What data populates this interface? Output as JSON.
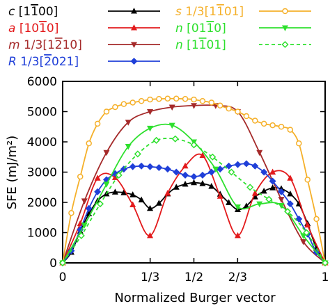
{
  "chart_data": {
    "type": "line",
    "xlabel": "Normalized Burger vector",
    "ylabel": "SFE (mJ/m²)",
    "xlim": [
      0,
      1
    ],
    "ylim": [
      0,
      6000
    ],
    "grid": false,
    "legend_position": "top",
    "x_ticks": [
      {
        "value": 0,
        "label": "0"
      },
      {
        "value": 0.3333,
        "label": "1/3"
      },
      {
        "value": 0.5,
        "label": "1/2"
      },
      {
        "value": 0.6667,
        "label": "2/3"
      },
      {
        "value": 1,
        "label": "1"
      }
    ],
    "y_ticks": [
      {
        "value": 0,
        "label": "0"
      },
      {
        "value": 1000,
        "label": "1000"
      },
      {
        "value": 2000,
        "label": "2000"
      },
      {
        "value": 3000,
        "label": "3000"
      },
      {
        "value": 4000,
        "label": "4000"
      },
      {
        "value": 5000,
        "label": "5000"
      },
      {
        "value": 6000,
        "label": "6000"
      }
    ],
    "series": [
      {
        "name": "c [1̅0]",
        "legend_plain": "c [1100]",
        "legend_prefix": "c",
        "legend_rest": "[1",
        "legend_over": "1",
        "legend_tail": "00]",
        "color": "#000000",
        "marker": "triangle-up",
        "dash": false,
        "x": [
          0,
          0.033,
          0.067,
          0.1,
          0.133,
          0.167,
          0.2,
          0.233,
          0.267,
          0.3,
          0.333,
          0.367,
          0.4,
          0.433,
          0.467,
          0.5,
          0.533,
          0.567,
          0.6,
          0.633,
          0.667,
          0.7,
          0.733,
          0.767,
          0.8,
          0.833,
          0.867,
          0.9,
          0.933,
          0.967,
          1
        ],
        "y": [
          0,
          350,
          1050,
          1620,
          2050,
          2280,
          2340,
          2320,
          2250,
          2080,
          1800,
          1970,
          2280,
          2500,
          2600,
          2650,
          2620,
          2530,
          2270,
          1990,
          1760,
          1880,
          2180,
          2370,
          2480,
          2450,
          2280,
          1950,
          1300,
          480,
          0
        ]
      },
      {
        "name": "a [1010]",
        "legend_plain": "a [1010]",
        "legend_prefix": "a",
        "legend_rest": "[10",
        "legend_over": "1",
        "legend_tail": "0]",
        "color": "#e31a1c",
        "marker": "triangle-up",
        "dash": false,
        "x": [
          0,
          0.067,
          0.133,
          0.2,
          0.267,
          0.333,
          0.4,
          0.467,
          0.533,
          0.6,
          0.667,
          0.733,
          0.8,
          0.867,
          0.933,
          1
        ],
        "y": [
          0,
          1300,
          2800,
          2820,
          1920,
          900,
          2300,
          3200,
          3550,
          2200,
          900,
          2300,
          3000,
          2800,
          1250,
          0
        ]
      },
      {
        "name": "m 1/3[1210]",
        "legend_plain": "m 1/3[1210]",
        "legend_prefix": "m",
        "legend_rest": "1/3[1",
        "legend_over": "2",
        "legend_tail": "10]",
        "color": "#a52a2a",
        "marker": "triangle-down",
        "dash": false,
        "x": [
          0,
          0.083,
          0.167,
          0.25,
          0.333,
          0.417,
          0.5,
          0.583,
          0.667,
          0.75,
          0.833,
          0.917,
          1
        ],
        "y": [
          0,
          2050,
          3650,
          4650,
          5000,
          5150,
          5200,
          5200,
          5000,
          3650,
          2100,
          700,
          0
        ]
      },
      {
        "name": "R 1/3[2021]",
        "legend_plain": "R 1/3[2021]",
        "legend_prefix": "R",
        "legend_rest": "1/3[",
        "legend_over": "2",
        "legend_tail": "021]",
        "color": "#1f3fd8",
        "marker": "diamond",
        "dash": false,
        "x": [
          0,
          0.033,
          0.067,
          0.1,
          0.133,
          0.167,
          0.2,
          0.233,
          0.267,
          0.3,
          0.333,
          0.367,
          0.4,
          0.433,
          0.467,
          0.5,
          0.533,
          0.567,
          0.6,
          0.633,
          0.667,
          0.7,
          0.733,
          0.767,
          0.8,
          0.833,
          0.867,
          0.9,
          0.933,
          0.967,
          1
        ],
        "y": [
          0,
          400,
          1100,
          1800,
          2350,
          2750,
          2950,
          3100,
          3180,
          3200,
          3180,
          3150,
          3100,
          3000,
          2900,
          2850,
          2900,
          3000,
          3100,
          3200,
          3250,
          3280,
          3200,
          3000,
          2700,
          2350,
          1950,
          1450,
          950,
          350,
          0
        ]
      },
      {
        "name": "s 1/3[1101]",
        "legend_plain": "s 1/3[1101]",
        "legend_prefix": "s",
        "legend_rest": "1/3[1",
        "legend_over": "1",
        "legend_tail": "01]",
        "color": "#f5b02a",
        "marker": "circle-open",
        "dash": false,
        "x": [
          0,
          0.033,
          0.067,
          0.1,
          0.133,
          0.167,
          0.2,
          0.233,
          0.267,
          0.3,
          0.333,
          0.367,
          0.4,
          0.433,
          0.467,
          0.5,
          0.533,
          0.567,
          0.6,
          0.633,
          0.667,
          0.7,
          0.733,
          0.767,
          0.8,
          0.833,
          0.867,
          0.9,
          0.933,
          0.967,
          1
        ],
        "y": [
          0,
          1650,
          2850,
          3950,
          4600,
          5000,
          5150,
          5250,
          5300,
          5350,
          5400,
          5420,
          5430,
          5430,
          5420,
          5400,
          5350,
          5300,
          5200,
          5100,
          5000,
          4850,
          4700,
          4600,
          4550,
          4500,
          4400,
          3950,
          2750,
          1450,
          0
        ]
      },
      {
        "name": "n [0110]",
        "legend_plain": "n [0110]",
        "legend_prefix": "n",
        "legend_rest": "[01",
        "legend_over": "1",
        "legend_tail": "0]",
        "color": "#2ee02e",
        "marker": "triangle-down",
        "dash": false,
        "x": [
          0,
          0.083,
          0.167,
          0.25,
          0.333,
          0.417,
          0.5,
          0.583,
          0.667,
          0.75,
          0.833,
          0.917,
          1
        ],
        "y": [
          0,
          1250,
          2600,
          3850,
          4450,
          4550,
          4000,
          3100,
          1850,
          1950,
          1900,
          900,
          0
        ]
      },
      {
        "name": "n [1101]",
        "legend_plain": "n [1101]",
        "legend_prefix": "n",
        "legend_rest": "[1",
        "legend_over": "1",
        "legend_tail": "01]",
        "color": "#2ee02e",
        "marker": "diamond-open",
        "dash": true,
        "x": [
          0,
          0.071,
          0.143,
          0.214,
          0.286,
          0.357,
          0.429,
          0.5,
          0.571,
          0.643,
          0.714,
          0.786,
          0.857,
          0.929,
          1
        ],
        "y": [
          0,
          900,
          1950,
          2900,
          3600,
          4050,
          4100,
          3900,
          3500,
          3000,
          2500,
          2100,
          1700,
          1000,
          0
        ]
      }
    ]
  }
}
